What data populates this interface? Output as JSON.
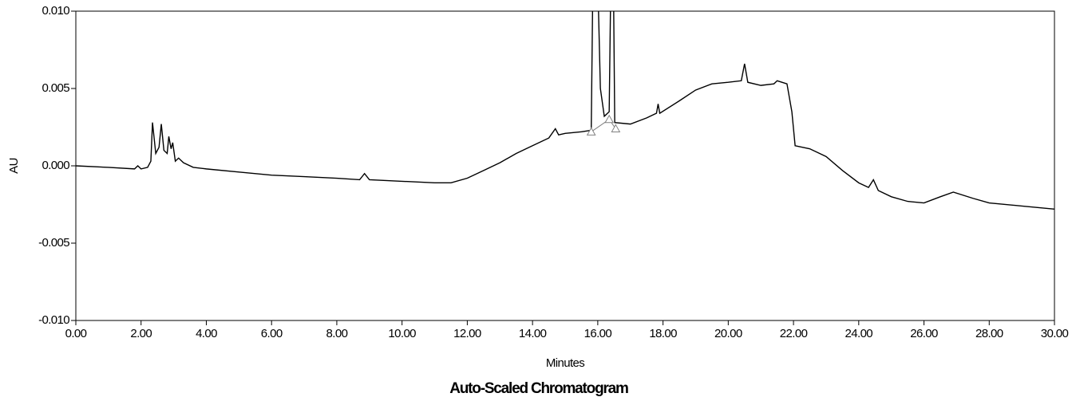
{
  "chart_data": {
    "type": "line",
    "title": "Auto-Scaled Chromatogram",
    "x_label": "Minutes",
    "y_label": "AU",
    "x": [
      0.0,
      1.0,
      1.8,
      1.9,
      2.0,
      2.2,
      2.3,
      2.35,
      2.45,
      2.55,
      2.62,
      2.7,
      2.8,
      2.85,
      2.92,
      2.97,
      3.05,
      3.15,
      3.3,
      3.6,
      4.0,
      5.0,
      6.0,
      7.0,
      8.0,
      8.7,
      8.85,
      9.0,
      10.0,
      11.0,
      11.5,
      12.0,
      12.5,
      13.0,
      13.5,
      14.0,
      14.5,
      14.7,
      14.8,
      15.0,
      15.5,
      15.8,
      15.85,
      16.0,
      16.08,
      16.2,
      16.35,
      16.4,
      16.48,
      16.52,
      17.0,
      17.5,
      17.8,
      17.85,
      17.9,
      18.5,
      19.0,
      19.5,
      20.0,
      20.4,
      20.5,
      20.6,
      21.0,
      21.4,
      21.5,
      21.8,
      21.95,
      22.05,
      22.5,
      23.0,
      23.5,
      24.0,
      24.3,
      24.45,
      24.6,
      25.0,
      25.5,
      26.0,
      26.5,
      26.9,
      27.5,
      28.0,
      29.0,
      30.0
    ],
    "series": [
      {
        "color": "#000000",
        "values": [
          0.0,
          -0.0001,
          -0.0002,
          0.0,
          -0.0002,
          -0.0001,
          0.0003,
          0.0028,
          0.0008,
          0.0012,
          0.0027,
          0.001,
          0.0008,
          0.0019,
          0.0011,
          0.0015,
          0.0003,
          0.0005,
          0.0002,
          -0.0001,
          -0.0002,
          -0.0004,
          -0.0006,
          -0.0007,
          -0.0008,
          -0.0009,
          -0.0005,
          -0.0009,
          -0.001,
          -0.0011,
          -0.0011,
          -0.0008,
          -0.0003,
          0.0002,
          0.0008,
          0.0013,
          0.0018,
          0.0024,
          0.002,
          0.0021,
          0.0022,
          0.0023,
          0.012,
          0.012,
          0.005,
          0.0032,
          0.0035,
          0.012,
          0.012,
          0.0028,
          0.0027,
          0.0031,
          0.0034,
          0.004,
          0.0034,
          0.0042,
          0.0049,
          0.0053,
          0.0054,
          0.0055,
          0.0066,
          0.0054,
          0.0052,
          0.0053,
          0.0055,
          0.0053,
          0.0035,
          0.0013,
          0.0011,
          0.0006,
          -0.0003,
          -0.0011,
          -0.0014,
          -0.0009,
          -0.0016,
          -0.002,
          -0.0023,
          -0.0024,
          -0.002,
          -0.0017,
          -0.0021,
          -0.0024,
          -0.0026,
          -0.0028
        ]
      }
    ],
    "markers": {
      "color": "#808080",
      "x": [
        15.8,
        16.35,
        16.55
      ],
      "values": [
        0.0022,
        0.003,
        0.0024
      ]
    },
    "xlim": [
      0,
      30
    ],
    "ylim": [
      -0.01,
      0.01
    ],
    "xticks": [
      {
        "value": 0,
        "label": "0.00"
      },
      {
        "value": 2,
        "label": "2.00"
      },
      {
        "value": 4,
        "label": "4.00"
      },
      {
        "value": 6,
        "label": "6.00"
      },
      {
        "value": 8,
        "label": "8.00"
      },
      {
        "value": 10,
        "label": "10.00"
      },
      {
        "value": 12,
        "label": "12.00"
      },
      {
        "value": 14,
        "label": "14.00"
      },
      {
        "value": 16,
        "label": "16.00"
      },
      {
        "value": 18,
        "label": "18.00"
      },
      {
        "value": 20,
        "label": "20.00"
      },
      {
        "value": 22,
        "label": "22.00"
      },
      {
        "value": 24,
        "label": "24.00"
      },
      {
        "value": 26,
        "label": "26.00"
      },
      {
        "value": 28,
        "label": "28.00"
      },
      {
        "value": 30,
        "label": "30.00"
      }
    ],
    "yticks": [
      {
        "value": -0.01,
        "label": "-0.010"
      },
      {
        "value": -0.005,
        "label": "-0.005"
      },
      {
        "value": 0,
        "label": "0.000"
      },
      {
        "value": 0.005,
        "label": "0.005"
      },
      {
        "value": 0.01,
        "label": "0.010"
      }
    ]
  }
}
